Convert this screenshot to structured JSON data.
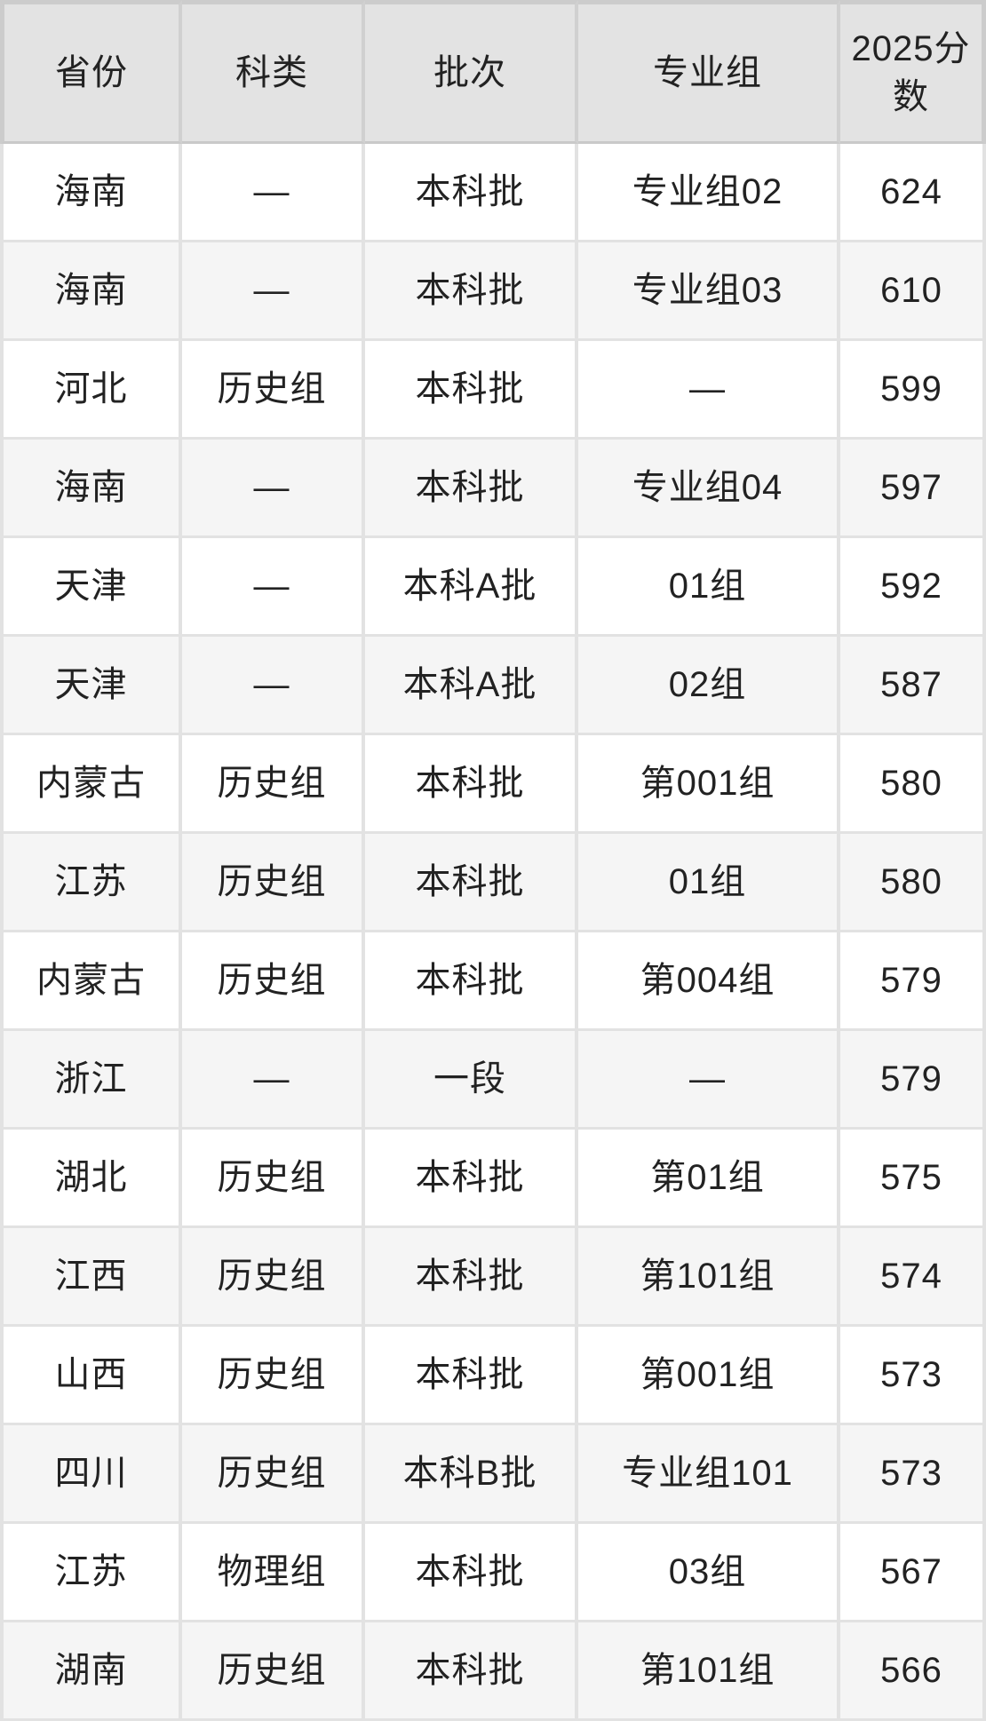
{
  "table": {
    "header": {
      "province": "省份",
      "category": "科类",
      "batch": "批次",
      "group": "专业组",
      "score": "2025分数"
    },
    "columns": [
      "province",
      "category",
      "batch",
      "group",
      "score"
    ],
    "rows": [
      {
        "province": "海南",
        "category": "—",
        "batch": "本科批",
        "group": "专业组02",
        "score": "624"
      },
      {
        "province": "海南",
        "category": "—",
        "batch": "本科批",
        "group": "专业组03",
        "score": "610"
      },
      {
        "province": "河北",
        "category": "历史组",
        "batch": "本科批",
        "group": "—",
        "score": "599"
      },
      {
        "province": "海南",
        "category": "—",
        "batch": "本科批",
        "group": "专业组04",
        "score": "597"
      },
      {
        "province": "天津",
        "category": "—",
        "batch": "本科A批",
        "group": "01组",
        "score": "592"
      },
      {
        "province": "天津",
        "category": "—",
        "batch": "本科A批",
        "group": "02组",
        "score": "587"
      },
      {
        "province": "内蒙古",
        "category": "历史组",
        "batch": "本科批",
        "group": "第001组",
        "score": "580"
      },
      {
        "province": "江苏",
        "category": "历史组",
        "batch": "本科批",
        "group": "01组",
        "score": "580"
      },
      {
        "province": "内蒙古",
        "category": "历史组",
        "batch": "本科批",
        "group": "第004组",
        "score": "579"
      },
      {
        "province": "浙江",
        "category": "—",
        "batch": "一段",
        "group": "—",
        "score": "579"
      },
      {
        "province": "湖北",
        "category": "历史组",
        "batch": "本科批",
        "group": "第01组",
        "score": "575"
      },
      {
        "province": "江西",
        "category": "历史组",
        "batch": "本科批",
        "group": "第101组",
        "score": "574"
      },
      {
        "province": "山西",
        "category": "历史组",
        "batch": "本科批",
        "group": "第001组",
        "score": "573"
      },
      {
        "province": "四川",
        "category": "历史组",
        "batch": "本科B批",
        "group": "专业组101",
        "score": "573"
      },
      {
        "province": "江苏",
        "category": "物理组",
        "batch": "本科批",
        "group": "03组",
        "score": "567"
      },
      {
        "province": "湖南",
        "category": "历史组",
        "batch": "本科批",
        "group": "第101组",
        "score": "566"
      }
    ]
  },
  "colors": {
    "header_bg": "#e3e3e3",
    "header_separator": "#d0d0d0",
    "header_bottom_border": "#c9c9c9",
    "outer_border": "#cccccc",
    "row_bg_odd": "#ffffff",
    "row_bg_even": "#f5f5f5",
    "cell_border": "#e2e2e2",
    "text": "#222222"
  }
}
